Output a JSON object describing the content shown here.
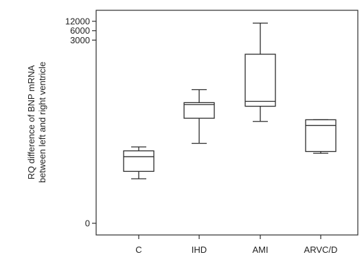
{
  "chart_data": {
    "type": "box",
    "title": "",
    "ylabel_lines": [
      "RQ difference of BNP mRNA",
      "between left and right ventricle"
    ],
    "xlabel": "",
    "yscale": "log (broken axis)",
    "y_ticks": [
      {
        "value": 12000,
        "label": "12000"
      },
      {
        "value": 6000,
        "label": "6000"
      },
      {
        "value": 3000,
        "label": "3000"
      },
      {
        "value": 0,
        "label": "0"
      }
    ],
    "categories": [
      "C",
      "IHD",
      "AMI",
      "ARVC/D"
    ],
    "boxes": [
      {
        "category": "C",
        "whisker_low": 0.11,
        "q1": 0.19,
        "median": 0.56,
        "q3": 0.86,
        "whisker_high": 1.15
      },
      {
        "category": "IHD",
        "whisker_low": 1.5,
        "q1": 9.5,
        "median": 26,
        "q3": 30,
        "whisker_high": 78
      },
      {
        "category": "AMI",
        "whisker_low": 7.5,
        "q1": 23,
        "median": 33,
        "q3": 1060,
        "whisker_high": 10500
      },
      {
        "category": "ARVC/D",
        "whisker_low": 0.72,
        "q1": 0.82,
        "median": 5.6,
        "q3": 8.5,
        "whisker_high": 8.5
      }
    ],
    "grid": false,
    "legend": "none"
  }
}
